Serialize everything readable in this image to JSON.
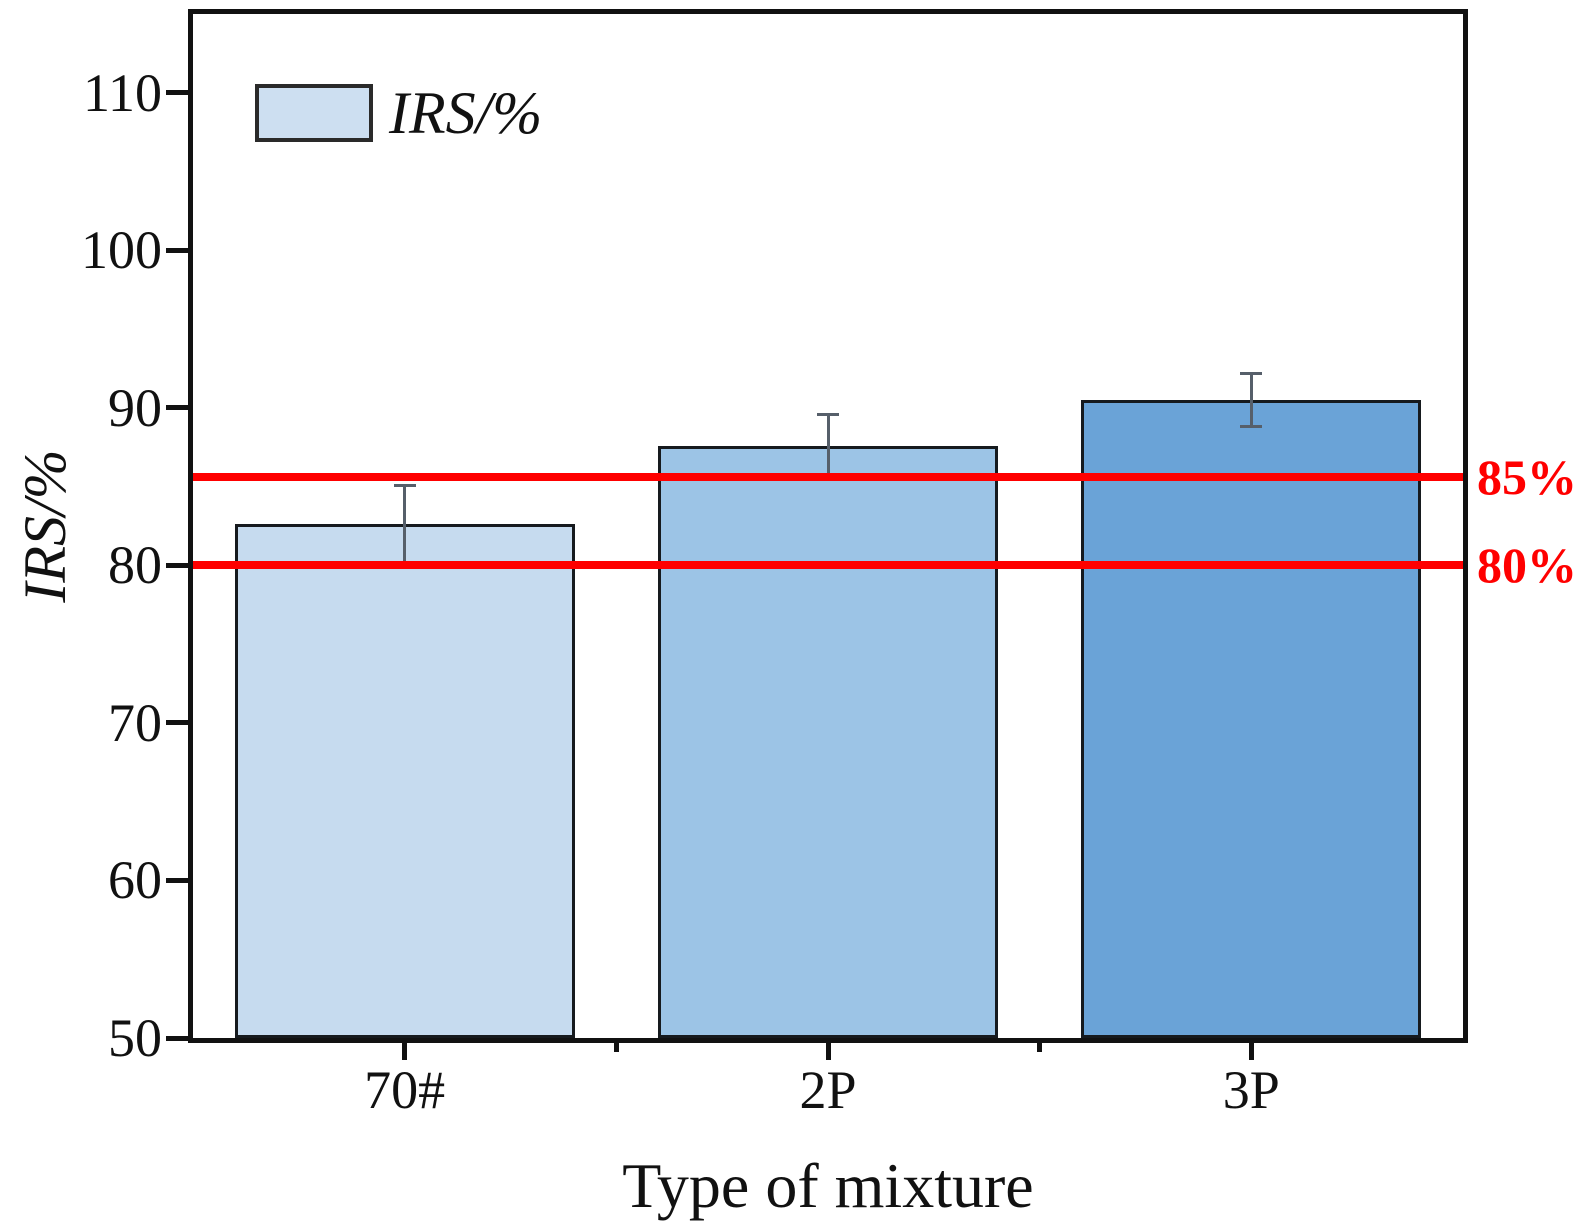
{
  "figure": {
    "background": "#ffffff",
    "frame_color": "#111111"
  },
  "chart_data": {
    "type": "bar",
    "title": "",
    "xlabel": "Type of mixture",
    "ylabel": "IRS/%",
    "categories": [
      "70#",
      "2P",
      "3P"
    ],
    "series": [
      {
        "name": "IRS/%",
        "values": [
          82.6,
          87.6,
          90.5
        ],
        "errors": [
          2.5,
          2.0,
          1.7
        ]
      }
    ],
    "bar_colors": [
      "#c6dbef",
      "#9cc4e6",
      "#6aa3d7"
    ],
    "bar_edge_color": "#161a1e",
    "error_bar_color": "#565f6a",
    "ylim": [
      50,
      115
    ],
    "yticks": [
      50,
      60,
      70,
      80,
      90,
      100,
      110
    ],
    "grid": false,
    "legend": {
      "position": "top-left",
      "entries": [
        {
          "label": "IRS/%",
          "swatch_color": "#cddff1"
        }
      ]
    },
    "reference_lines": [
      {
        "label": "85%",
        "value": 85,
        "draw_at": 85.6,
        "color": "#ff0000"
      },
      {
        "label": "80%",
        "value": 80,
        "draw_at": 80.0,
        "color": "#ff0000"
      }
    ]
  }
}
